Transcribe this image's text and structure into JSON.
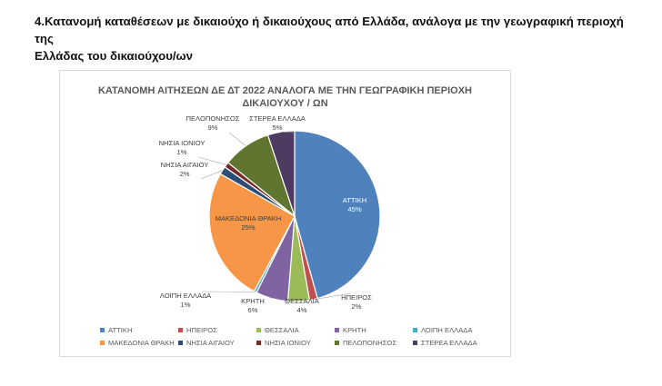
{
  "page": {
    "heading_line1": "4.Κατανομή καταθέσεων με δικαιούχο ή δικαιούχους από Ελλάδα, ανάλογα με την γεωγραφική περιοχή της",
    "heading_line2": "Ελλάδας του δικαιούχου/ων"
  },
  "chart_data": {
    "type": "pie",
    "title": "ΚΑΤΑΝΟΜΗ ΑΙΤΗΣΕΩΝ ΔΕ ΔΤ 2022 ΑΝΑΛΟΓΑ ΜΕ ΤΗΝ ΓΕΩΓΡΑΦΙΚΗ ΠΕΡΙΟΧΗ ΔΙΚΑΙΟΥΧΟΥ / ΩΝ",
    "title_line1": "ΚΑΤΑΝΟΜΗ ΑΙΤΗΣΕΩΝ ΔΕ ΔΤ 2022 ΑΝΑΛΟΓΑ ΜΕ ΤΗΝ ΓΕΩΓΡΑΦΙΚΗ ΠΕΡΙΟΧΗ",
    "title_line2": "ΔΙΚΑΙΟΥΧΟΥ / ΩΝ",
    "legend_position": "bottom",
    "slices": [
      {
        "label": "ΑΤΤΙΚΗ",
        "value": 45,
        "pct_label": "45%",
        "color": "#4f81bd"
      },
      {
        "label": "ΗΠΕΙΡΟΣ",
        "value": 1.5,
        "pct_label": "2%",
        "color": "#c0504d"
      },
      {
        "label": "ΘΕΣΣΑΛΙΑ",
        "value": 4,
        "pct_label": "4%",
        "color": "#9bbb59"
      },
      {
        "label": "ΚΡΗΤΗ",
        "value": 6,
        "pct_label": "6%",
        "color": "#8064a2"
      },
      {
        "label": "ΛΟΙΠΗ ΕΛΛΑΔΑ",
        "value": 0.5,
        "pct_label": "1%",
        "color": "#4bacc6"
      },
      {
        "label": "ΜΑΚΕΔΟΝΙΑ ΘΡΑΚΗ",
        "value": 25,
        "pct_label": "25%",
        "color": "#f79646"
      },
      {
        "label": "ΝΗΣΙΑ ΑΙΓΑΙΟΥ",
        "value": 1.5,
        "pct_label": "2%",
        "color": "#2c4d75"
      },
      {
        "label": "ΝΗΣΙΑ ΙΟΝΙΟΥ",
        "value": 1,
        "pct_label": "1%",
        "color": "#772c2a"
      },
      {
        "label": "ΠΕΛΟΠΟΝΗΣΟΣ",
        "value": 9,
        "pct_label": "9%",
        "color": "#5f7530"
      },
      {
        "label": "ΣΤΕΡΕΑ ΕΛΛΑΔΑ",
        "value": 5,
        "pct_label": "5%",
        "color": "#4d3b62"
      }
    ]
  }
}
